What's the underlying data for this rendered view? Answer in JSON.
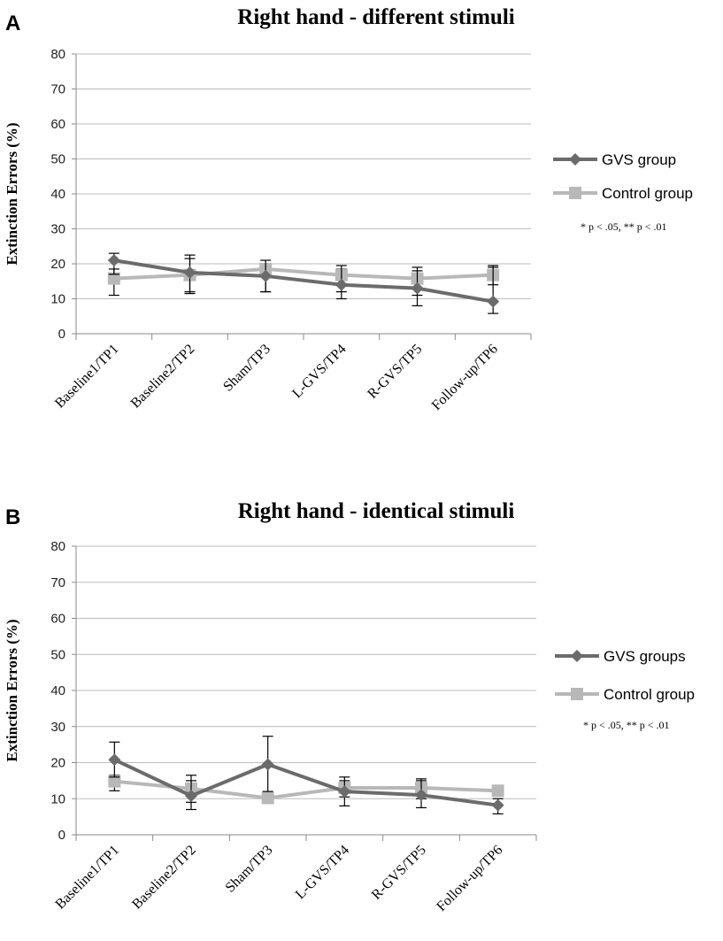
{
  "chart_data": [
    {
      "type": "line",
      "panel_label": "A",
      "title": "Right hand -  different stimuli",
      "xlabel": "",
      "ylabel": "Extinction Errors (%)",
      "ylim": [
        0,
        80
      ],
      "yticks": [
        0,
        10,
        20,
        30,
        40,
        50,
        60,
        70,
        80
      ],
      "grid": true,
      "legend_position": "right",
      "categories": [
        "Baseline1/TP1",
        "Baseline2/TP2",
        "Sham/TP3",
        "L-GVS/TP4",
        "R-GVS/TP5",
        "Follow-up/TP6"
      ],
      "series": [
        {
          "name": "GVS group",
          "marker": "diamond",
          "color": "#6b6b6b",
          "values": [
            21,
            17.5,
            16.5,
            14,
            13,
            9.2
          ],
          "err_low": [
            17,
            12,
            12,
            10,
            8,
            5.8
          ],
          "err_high": [
            23,
            22.5,
            21,
            19.5,
            19,
            19.5
          ]
        },
        {
          "name": "Control group",
          "marker": "square",
          "color": "#b8b8b8",
          "values": [
            15.8,
            16.8,
            18.5,
            16.8,
            15.8,
            16.8
          ],
          "err_low": [
            11,
            11.5,
            12,
            12,
            11,
            14
          ],
          "err_high": [
            18.5,
            21.5,
            19.5,
            18.5,
            18,
            19
          ]
        }
      ],
      "annotation": "* p < .05, ** p < .01"
    },
    {
      "type": "line",
      "panel_label": "B",
      "title": "Right hand - identical stimuli",
      "xlabel": "",
      "ylabel": "Extinction Errors (%)",
      "ylim": [
        0,
        80
      ],
      "yticks": [
        0,
        10,
        20,
        30,
        40,
        50,
        60,
        70,
        80
      ],
      "grid": true,
      "legend_position": "right",
      "categories": [
        "Baseline1/TP1",
        "Baseline2/TP2",
        "Sham/TP3",
        "L-GVS/TP4",
        "R-GVS/TP5",
        "Follow-up/TP6"
      ],
      "series": [
        {
          "name": "GVS groups",
          "marker": "diamond",
          "color": "#6b6b6b",
          "values": [
            20.8,
            10.8,
            19.5,
            12,
            11,
            8.2
          ],
          "err_low": [
            16,
            7,
            12,
            8,
            7.5,
            5.8
          ],
          "err_high": [
            25.7,
            16.5,
            27.3,
            16,
            15.5,
            10
          ]
        },
        {
          "name": "Control group",
          "marker": "square",
          "color": "#b8b8b8",
          "values": [
            14.8,
            12.8,
            10.2,
            13,
            13,
            12.2
          ],
          "err_low": [
            12.2,
            9,
            9.2,
            10.5,
            10,
            11
          ],
          "err_high": [
            16.5,
            15,
            11.5,
            15,
            15,
            13.5
          ]
        }
      ],
      "annotation": "* p < .05, ** p < .01"
    }
  ]
}
